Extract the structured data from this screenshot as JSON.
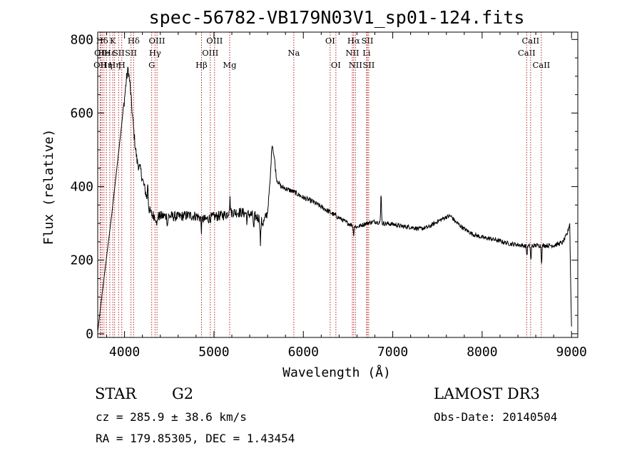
{
  "chart_data": {
    "type": "line",
    "title": "spec-56782-VB179N03V1_sp01-124.fits",
    "xlabel": "Wavelength (Å)",
    "ylabel": "Flux (relative)",
    "xlim": [
      3700,
      9070
    ],
    "ylim": [
      -10,
      820
    ],
    "xticks": [
      4000,
      5000,
      6000,
      7000,
      8000,
      9000
    ],
    "yticks": [
      0,
      200,
      400,
      600,
      800
    ],
    "series": [
      {
        "name": "flux",
        "anchors": [
          [
            3700,
            5
          ],
          [
            3750,
            110
          ],
          [
            3800,
            210
          ],
          [
            3850,
            310
          ],
          [
            3900,
            420
          ],
          [
            3950,
            530
          ],
          [
            4000,
            640
          ],
          [
            4020,
            690
          ],
          [
            4040,
            720
          ],
          [
            4060,
            680
          ],
          [
            4080,
            620
          ],
          [
            4100,
            560
          ],
          [
            4120,
            510
          ],
          [
            4140,
            470
          ],
          [
            4160,
            455
          ],
          [
            4180,
            445
          ],
          [
            4200,
            420
          ],
          [
            4220,
            400
          ],
          [
            4240,
            380
          ],
          [
            4260,
            350
          ],
          [
            4280,
            335
          ],
          [
            4300,
            325
          ],
          [
            4350,
            318
          ],
          [
            4400,
            320
          ],
          [
            4500,
            320
          ],
          [
            4600,
            318
          ],
          [
            4700,
            322
          ],
          [
            4800,
            320
          ],
          [
            4900,
            310
          ],
          [
            5000,
            318
          ],
          [
            5100,
            322
          ],
          [
            5200,
            330
          ],
          [
            5300,
            330
          ],
          [
            5400,
            325
          ],
          [
            5500,
            315
          ],
          [
            5550,
            300
          ],
          [
            5600,
            330
          ],
          [
            5630,
            420
          ],
          [
            5650,
            520
          ],
          [
            5680,
            470
          ],
          [
            5700,
            420
          ],
          [
            5750,
            400
          ],
          [
            5800,
            395
          ],
          [
            5900,
            385
          ],
          [
            6000,
            370
          ],
          [
            6100,
            360
          ],
          [
            6200,
            345
          ],
          [
            6300,
            330
          ],
          [
            6400,
            315
          ],
          [
            6500,
            300
          ],
          [
            6600,
            290
          ],
          [
            6700,
            300
          ],
          [
            6800,
            305
          ],
          [
            6900,
            300
          ],
          [
            7000,
            298
          ],
          [
            7100,
            292
          ],
          [
            7200,
            290
          ],
          [
            7300,
            285
          ],
          [
            7400,
            290
          ],
          [
            7500,
            305
          ],
          [
            7600,
            318
          ],
          [
            7650,
            320
          ],
          [
            7700,
            305
          ],
          [
            7800,
            285
          ],
          [
            7900,
            270
          ],
          [
            8000,
            262
          ],
          [
            8100,
            258
          ],
          [
            8200,
            252
          ],
          [
            8300,
            245
          ],
          [
            8400,
            242
          ],
          [
            8500,
            238
          ],
          [
            8600,
            240
          ],
          [
            8700,
            240
          ],
          [
            8800,
            240
          ],
          [
            8900,
            248
          ],
          [
            8950,
            270
          ],
          [
            8980,
            300
          ],
          [
            8990,
            140
          ],
          [
            9000,
            20
          ]
        ],
        "features": [
          [
            4260,
            60
          ],
          [
            4360,
            -30
          ],
          [
            4480,
            -25
          ],
          [
            4860,
            -30
          ],
          [
            5170,
            15
          ],
          [
            5180,
            35
          ],
          [
            5370,
            -20
          ],
          [
            5445,
            -40
          ],
          [
            5520,
            -65
          ],
          [
            6562,
            -25
          ],
          [
            6870,
            80
          ],
          [
            8500,
            -25
          ],
          [
            8545,
            -40
          ],
          [
            8665,
            -45
          ]
        ]
      }
    ],
    "line_markers": [
      {
        "w": 3727,
        "label": "OII",
        "row": 2
      },
      {
        "w": 3734,
        "label": "OII",
        "row": 1
      },
      {
        "w": 3750,
        "label": "Hδ",
        "row": 0
      },
      {
        "w": 3770,
        "label": "He",
        "row": 1
      },
      {
        "w": 3797,
        "label": "Hη",
        "row": 2
      },
      {
        "w": 3835,
        "label": "Hε",
        "row": 1
      },
      {
        "w": 3869,
        "label": "K",
        "row": 0
      },
      {
        "w": 3889,
        "label": "Hη",
        "row": 2
      },
      {
        "w": 3934,
        "label": "SII",
        "row": 1
      },
      {
        "w": 3969,
        "label": "H",
        "row": 2
      },
      {
        "w": 4072,
        "label": "SII",
        "row": 1
      },
      {
        "w": 4102,
        "label": "Hδ",
        "row": 0
      },
      {
        "w": 4304,
        "label": "G",
        "row": 2
      },
      {
        "w": 4341,
        "label": "Hγ",
        "row": 1
      },
      {
        "w": 4363,
        "label": "OIII",
        "row": 0
      },
      {
        "w": 4861,
        "label": "Hβ",
        "row": 2
      },
      {
        "w": 4959,
        "label": "OIII",
        "row": 1
      },
      {
        "w": 5007,
        "label": "OIII",
        "row": 0
      },
      {
        "w": 5176,
        "label": "Mg",
        "row": 2
      },
      {
        "w": 5893,
        "label": "Na",
        "row": 1
      },
      {
        "w": 6300,
        "label": "OI",
        "row": 0
      },
      {
        "w": 6364,
        "label": "OI",
        "row": 2
      },
      {
        "w": 6548,
        "label": "NII",
        "row": 1
      },
      {
        "w": 6563,
        "label": "Hα",
        "row": 0
      },
      {
        "w": 6583,
        "label": "NII",
        "row": 2
      },
      {
        "w": 6707,
        "label": "Li",
        "row": 1
      },
      {
        "w": 6716,
        "label": "SII",
        "row": 0
      },
      {
        "w": 6731,
        "label": "SII",
        "row": 2
      },
      {
        "w": 8498,
        "label": "CaII",
        "row": 1
      },
      {
        "w": 8542,
        "label": "CaII",
        "row": 0
      },
      {
        "w": 8662,
        "label": "CaII",
        "row": 2
      }
    ]
  },
  "info": {
    "object_class": "STAR",
    "subclass": "G2",
    "survey": "LAMOST DR3",
    "cz": "cz = 285.9 ± 38.6 km/s",
    "obs_date": "Obs-Date: 20140504",
    "coords": "RA = 179.85305, DEC =    1.43454"
  }
}
